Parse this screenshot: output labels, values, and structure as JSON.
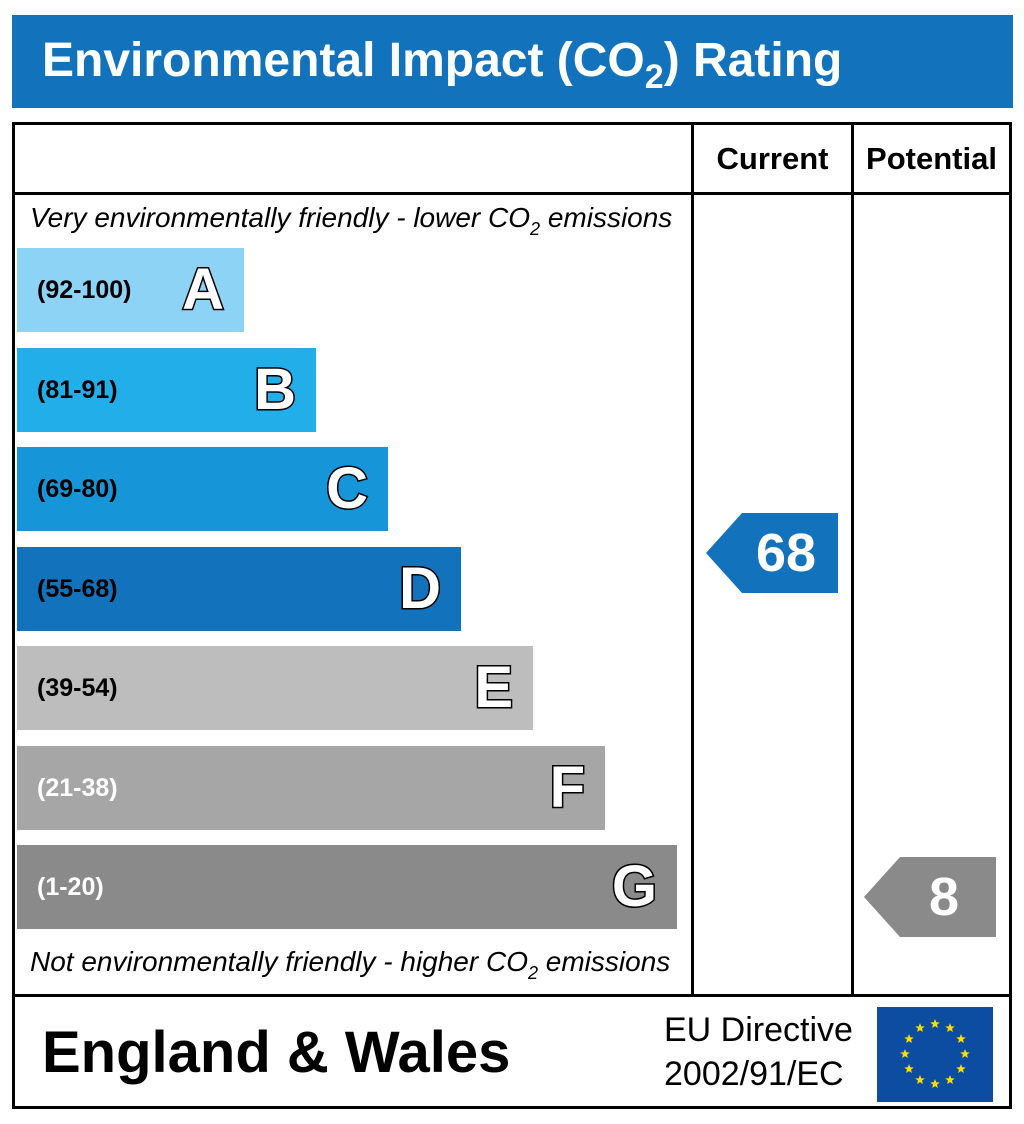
{
  "title": {
    "prefix": "Environmental Impact (CO",
    "subscript": "2",
    "suffix": ") Rating"
  },
  "columns": {
    "current": "Current",
    "potential": "Potential"
  },
  "top_note": {
    "prefix": "Very environmentally friendly - lower CO",
    "subscript": "2",
    "suffix": " emissions"
  },
  "bottom_note": {
    "prefix": "Not environmentally friendly - higher CO",
    "subscript": "2",
    "suffix": " emissions"
  },
  "chart_data": {
    "type": "bar",
    "categories": [
      "A",
      "B",
      "C",
      "D",
      "E",
      "F",
      "G"
    ],
    "bands": [
      {
        "letter": "A",
        "range": "(92-100)",
        "color": "#8dd3f5",
        "text_color": "#000000"
      },
      {
        "letter": "B",
        "range": "(81-91)",
        "color": "#22aee9",
        "text_color": "#000000"
      },
      {
        "letter": "C",
        "range": "(69-80)",
        "color": "#1696d8",
        "text_color": "#000000"
      },
      {
        "letter": "D",
        "range": "(55-68)",
        "color": "#1273bc",
        "text_color": "#000000"
      },
      {
        "letter": "E",
        "range": "(39-54)",
        "color": "#bdbdbd",
        "text_color": "#000000"
      },
      {
        "letter": "F",
        "range": "(21-38)",
        "color": "#a6a6a6",
        "text_color": "#ffffff"
      },
      {
        "letter": "G",
        "range": "(1-20)",
        "color": "#8a8a8a",
        "text_color": "#ffffff"
      }
    ],
    "current": {
      "value": 68,
      "band": "D",
      "color": "#1273bc"
    },
    "potential": {
      "value": 8,
      "band": "G",
      "color": "#8a8a8a"
    }
  },
  "footer": {
    "region": "England & Wales",
    "directive_line1": "EU Directive",
    "directive_line2": "2002/91/EC"
  }
}
